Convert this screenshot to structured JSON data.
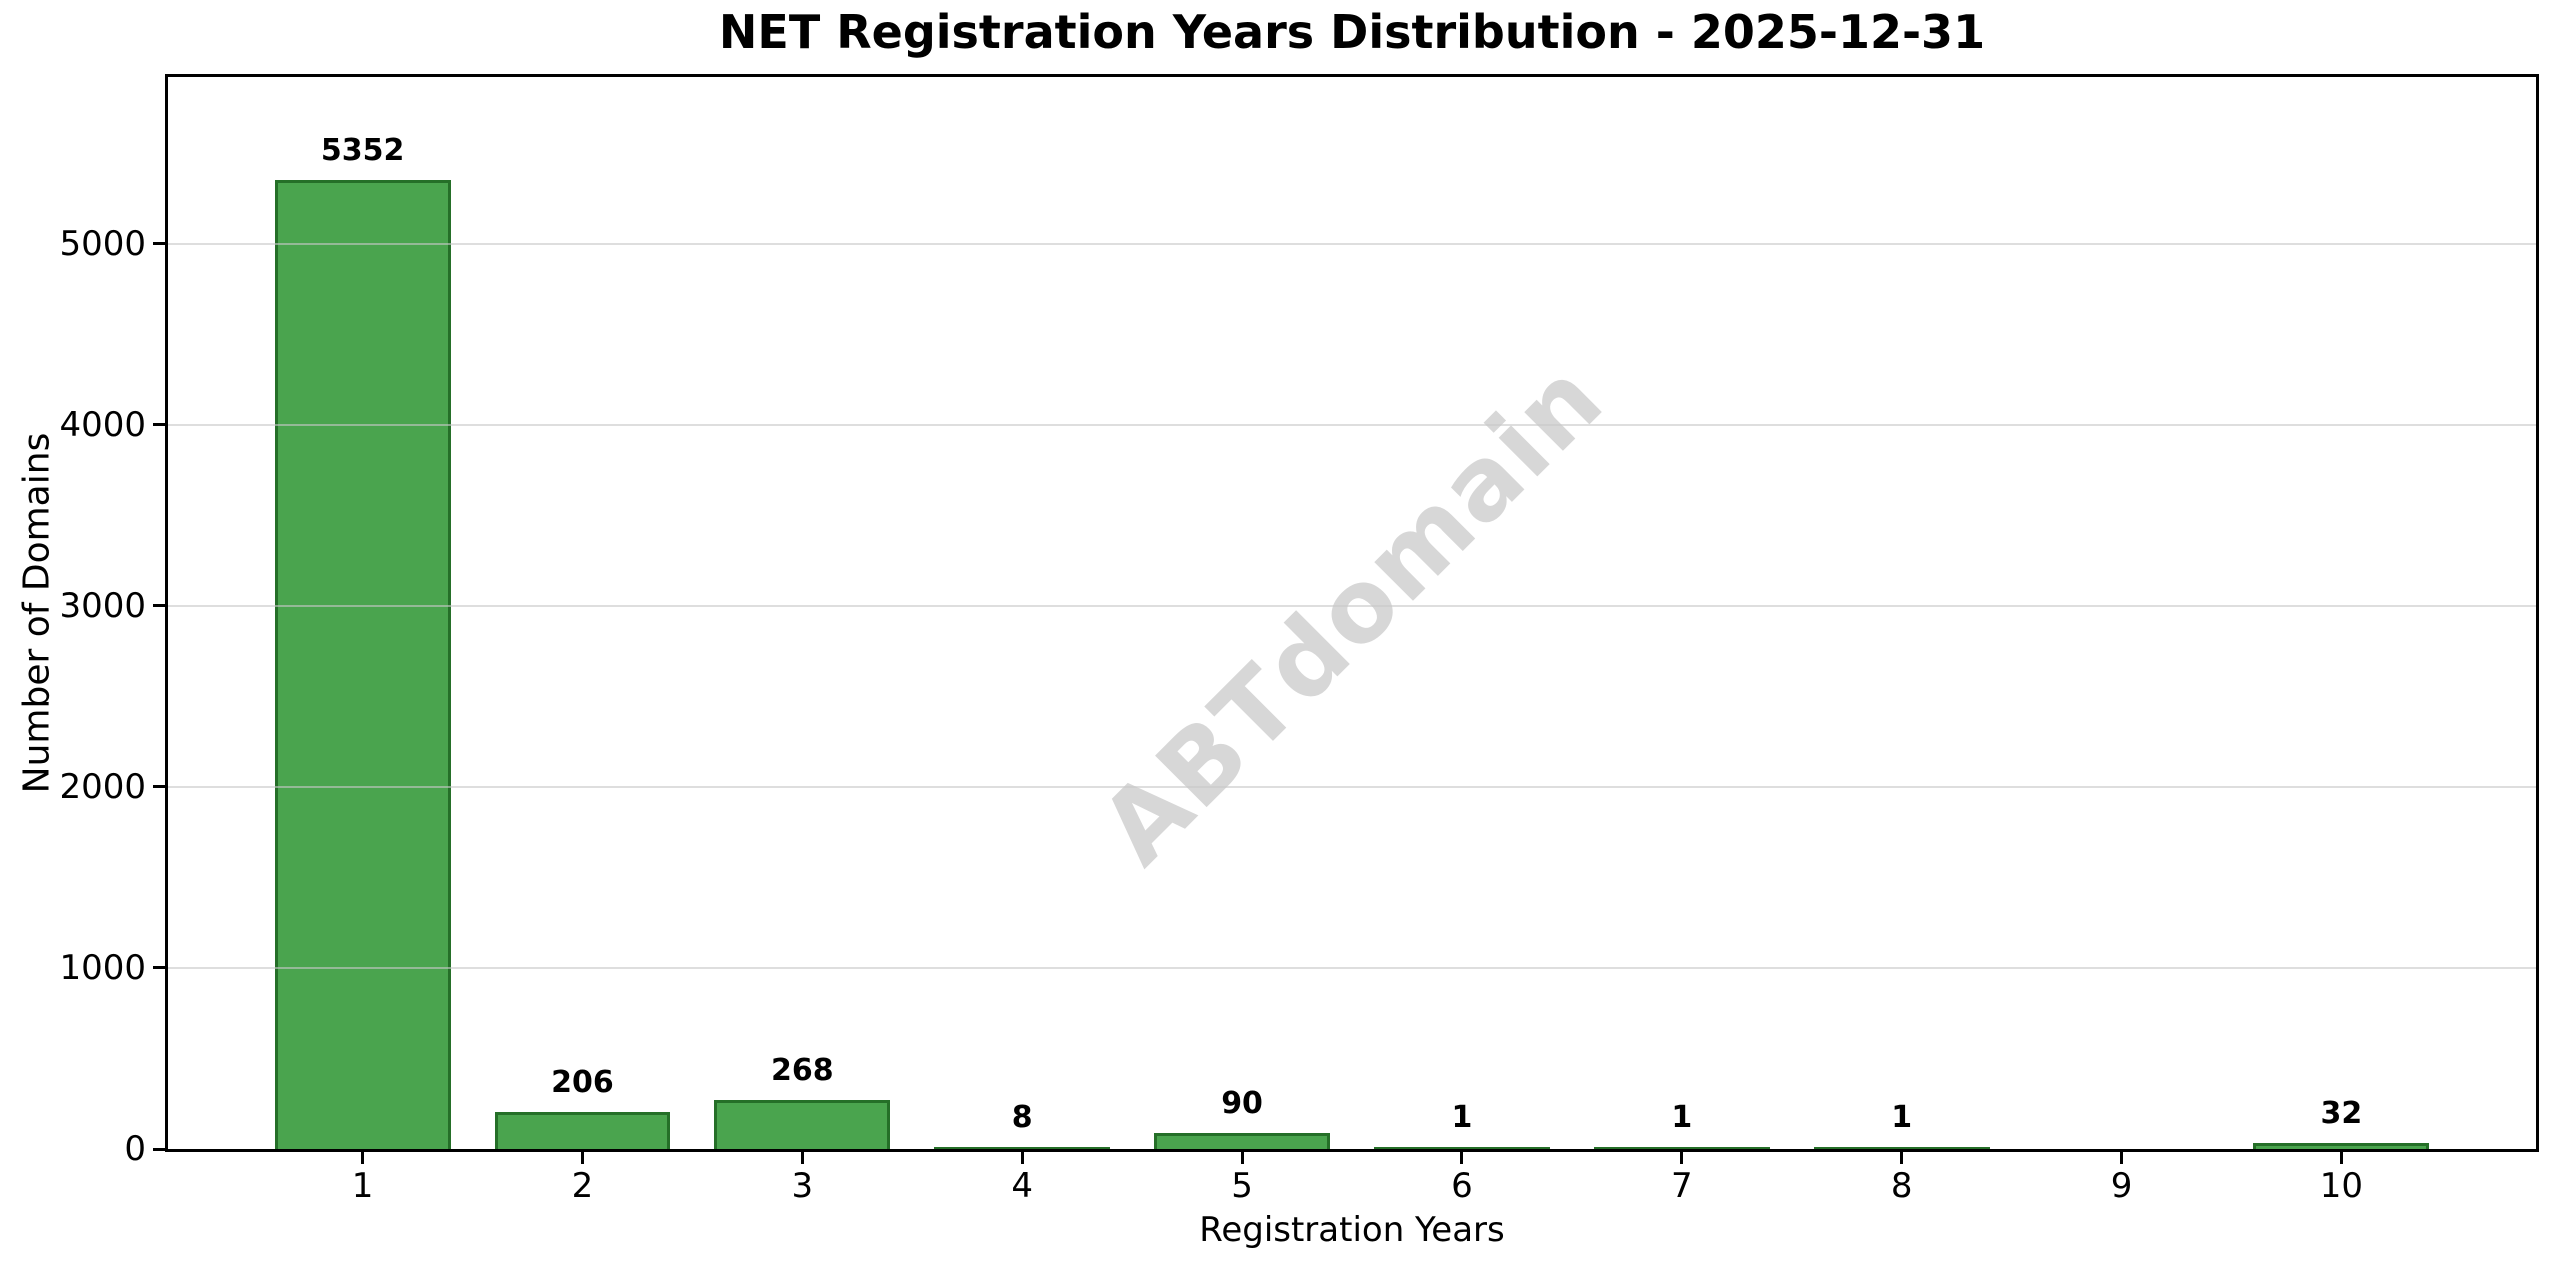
{
  "chart_data": {
    "type": "bar",
    "title": "NET Registration Years Distribution - 2025-12-31",
    "xlabel": "Registration Years",
    "ylabel": "Number of Domains",
    "categories": [
      "1",
      "2",
      "3",
      "4",
      "5",
      "6",
      "7",
      "8",
      "9",
      "10"
    ],
    "values": [
      5352,
      206,
      268,
      8,
      90,
      1,
      1,
      1,
      0,
      32
    ],
    "bar_labels": [
      "5352",
      "206",
      "268",
      "8",
      "90",
      "1",
      "1",
      "1",
      "",
      "32"
    ],
    "y_ticks": [
      0,
      1000,
      2000,
      3000,
      4000,
      5000
    ],
    "y_tick_labels": [
      "0",
      "1000",
      "2000",
      "3000",
      "4000",
      "5000"
    ],
    "ylim": [
      0,
      5920
    ],
    "xlim": [
      0.115,
      10.885
    ],
    "bar_width": 0.8,
    "grid": "horizontal",
    "legend": "none",
    "watermark": "ABTdomain",
    "colors": {
      "bar_fill": "#4AA44E",
      "bar_edge": "#256F28",
      "grid": "#c8c8c8",
      "spine": "#000000",
      "text": "#000000",
      "watermark": "#D7D7D7",
      "background": "#FFFFFF"
    }
  }
}
